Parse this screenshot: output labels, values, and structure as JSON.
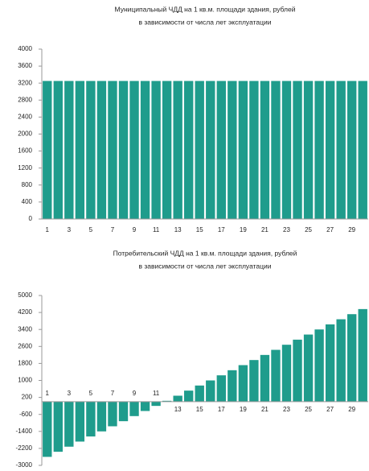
{
  "chart_data": [
    {
      "type": "bar",
      "title": "Муниципальный ЧДД на 1 кв.м. площади здания, рублей",
      "subtitle": "в зависимости от числа лет эксплуатации",
      "categories": [
        "1",
        null,
        "3",
        null,
        "5",
        null,
        "7",
        null,
        "9",
        null,
        "11",
        null,
        "13",
        null,
        "15",
        null,
        "17",
        null,
        "19",
        null,
        "21",
        null,
        "23",
        null,
        "25",
        null,
        "27",
        null,
        "29",
        null
      ],
      "values": [
        3250,
        3250,
        3250,
        3250,
        3250,
        3250,
        3250,
        3250,
        3250,
        3250,
        3250,
        3250,
        3250,
        3250,
        3250,
        3250,
        3250,
        3250,
        3250,
        3250,
        3250,
        3250,
        3250,
        3250,
        3250,
        3250,
        3250,
        3250,
        3250,
        3250
      ],
      "color": "#1f9c8c",
      "ylim": [
        0,
        4000
      ],
      "yticks": [
        0,
        400,
        800,
        1200,
        1600,
        2000,
        2400,
        2800,
        3200,
        3600,
        4000
      ]
    },
    {
      "type": "bar",
      "title": "Потребительский ЧДД на 1 кв.м. площади здания, рублей",
      "subtitle": "в зависимости от числа лет эксплуатации",
      "categories": [
        "1",
        null,
        "3",
        null,
        "5",
        null,
        "7",
        null,
        "9",
        null,
        "11",
        null,
        "13",
        null,
        "15",
        null,
        "17",
        null,
        "19",
        null,
        "21",
        null,
        "23",
        null,
        "25",
        null,
        "27",
        null,
        "29",
        null
      ],
      "values": [
        -2600,
        -2360,
        -2120,
        -1880,
        -1640,
        -1400,
        -1160,
        -920,
        -680,
        -440,
        -200,
        40,
        280,
        520,
        760,
        1000,
        1240,
        1480,
        1720,
        1960,
        2200,
        2440,
        2680,
        2920,
        3160,
        3400,
        3640,
        3880,
        4120,
        4360
      ],
      "color": "#1f9c8c",
      "ylim": [
        -3000,
        5000
      ],
      "yticks": [
        -3000,
        -2200,
        -1400,
        -600,
        200,
        1000,
        1800,
        2600,
        3400,
        4200,
        5000
      ]
    }
  ]
}
